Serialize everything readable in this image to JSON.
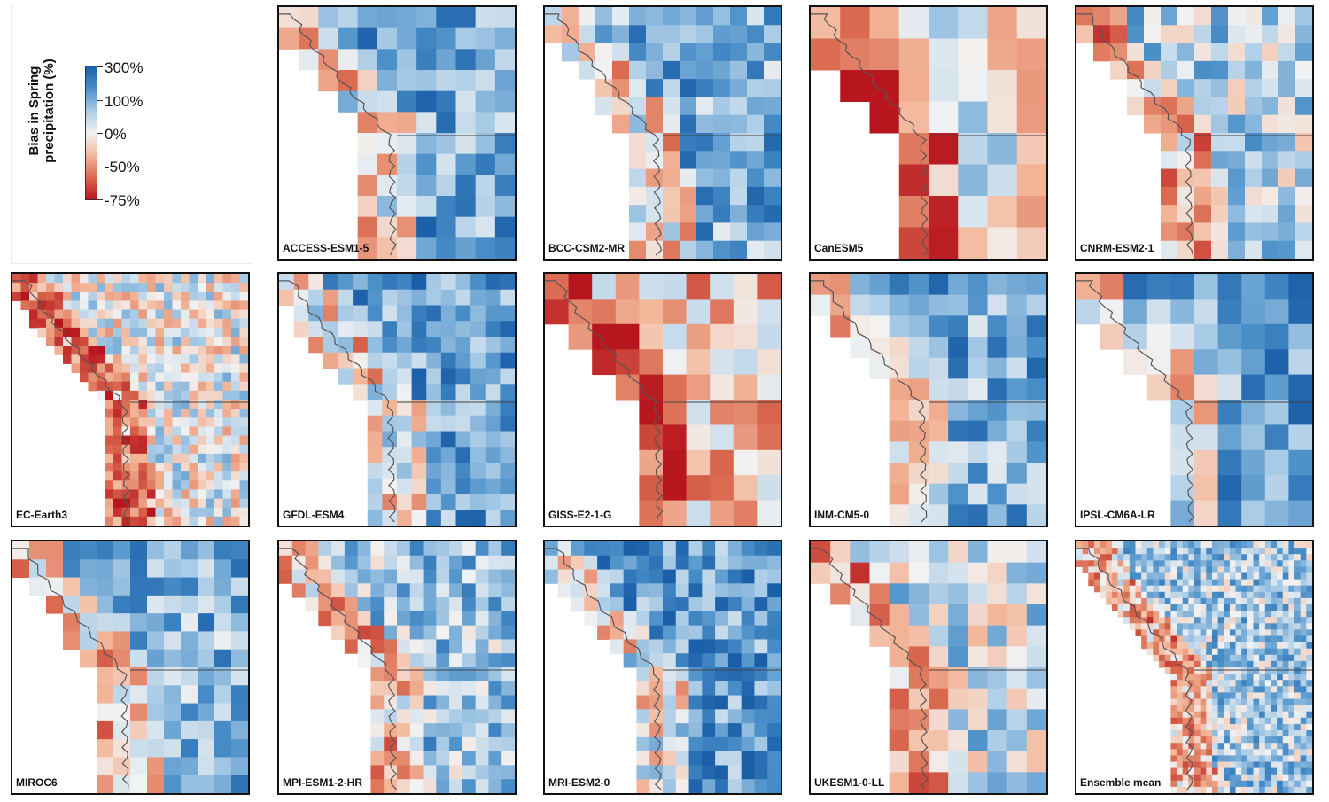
{
  "colorbar": {
    "title_line1": "Bias in Spring",
    "title_line2": "precipitation (%)",
    "ticks": [
      "300%",
      "100%",
      "0%",
      "-50%",
      "-75%"
    ],
    "colors": [
      "#1a5fa8",
      "#4a8fc8",
      "#a9cbe6",
      "#f2f2f2",
      "#f3b79a",
      "#d9694f",
      "#b8161f"
    ]
  },
  "panels": [
    {
      "label": "ACCESS-ESM1-5",
      "grid": 12,
      "bias": 0.55
    },
    {
      "label": "BCC-CSM2-MR",
      "grid": 14,
      "bias": 0.5
    },
    {
      "label": "CanESM5",
      "grid": 8,
      "bias": 0.0
    },
    {
      "label": "CNRM-ESM2-1",
      "grid": 14,
      "bias": 0.25
    },
    {
      "label": "EC-Earth3",
      "grid": 28,
      "bias": 0.05
    },
    {
      "label": "GFDL-ESM4",
      "grid": 16,
      "bias": 0.55
    },
    {
      "label": "GISS-E2-1-G",
      "grid": 10,
      "bias": -0.25
    },
    {
      "label": "INM-CM5-0",
      "grid": 12,
      "bias": 0.5
    },
    {
      "label": "IPSL-CM6A-LR",
      "grid": 10,
      "bias": 0.55
    },
    {
      "label": "MIROC6",
      "grid": 14,
      "bias": 0.45
    },
    {
      "label": "MPI-ESM1-2-HR",
      "grid": 18,
      "bias": 0.35
    },
    {
      "label": "MRI-ESM2-0",
      "grid": 18,
      "bias": 0.6
    },
    {
      "label": "UKESM1-0-LL",
      "grid": 12,
      "bias": 0.2
    },
    {
      "label": "Ensemble mean",
      "grid": 40,
      "bias": 0.3
    }
  ]
}
